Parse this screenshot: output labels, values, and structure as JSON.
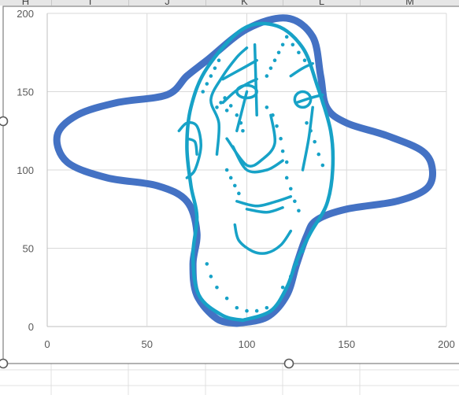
{
  "spreadsheet": {
    "column_headers": [
      "H",
      "I",
      "J",
      "K",
      "L",
      "M"
    ]
  },
  "chart_data": {
    "type": "scatter",
    "title": "",
    "xlabel": "",
    "ylabel": "",
    "xlim": [
      0,
      200
    ],
    "ylim": [
      0,
      200
    ],
    "x_ticks": [
      0,
      50,
      100,
      150,
      200
    ],
    "y_ticks": [
      0,
      50,
      100,
      150,
      200
    ],
    "grid": true,
    "legend": "none",
    "colors": {
      "outline": "#4472c4",
      "face": "#17a2c7",
      "grid": "#d9d9d9",
      "axis": "#bfbfbf"
    },
    "series": [
      {
        "style": "smooth-line",
        "points": [
          [
            95,
            2
          ],
          [
            110,
            6
          ],
          [
            120,
            20
          ],
          [
            125,
            40
          ],
          [
            130,
            58
          ],
          [
            135,
            68
          ],
          [
            150,
            75
          ],
          [
            175,
            80
          ],
          [
            190,
            88
          ],
          [
            193,
            100
          ],
          [
            188,
            112
          ],
          [
            170,
            122
          ],
          [
            150,
            130
          ],
          [
            140,
            140
          ],
          [
            137,
            160
          ],
          [
            133,
            185
          ],
          [
            120,
            197
          ],
          [
            100,
            190
          ],
          [
            80,
            170
          ],
          [
            70,
            160
          ],
          [
            60,
            148
          ],
          [
            35,
            143
          ],
          [
            15,
            135
          ],
          [
            5,
            122
          ],
          [
            10,
            105
          ],
          [
            30,
            95
          ],
          [
            55,
            90
          ],
          [
            70,
            80
          ],
          [
            75,
            60
          ],
          [
            73,
            40
          ],
          [
            75,
            20
          ],
          [
            85,
            5
          ],
          [
            95,
            2
          ]
        ]
      },
      {
        "style": "smooth-line",
        "points": [
          [
            98,
            4
          ],
          [
            112,
            10
          ],
          [
            120,
            25
          ],
          [
            125,
            42
          ],
          [
            132,
            60
          ],
          [
            140,
            78
          ],
          [
            143,
            100
          ],
          [
            142,
            125
          ],
          [
            135,
            155
          ],
          [
            128,
            178
          ],
          [
            115,
            192
          ],
          [
            98,
            190
          ],
          [
            80,
            165
          ],
          [
            72,
            140
          ],
          [
            70,
            115
          ],
          [
            72,
            90
          ],
          [
            75,
            70
          ],
          [
            73,
            45
          ],
          [
            76,
            20
          ],
          [
            88,
            7
          ],
          [
            98,
            4
          ]
        ]
      },
      {
        "style": "line",
        "points": [
          [
            90,
            120
          ],
          [
            100,
            103
          ],
          [
            108,
            107
          ],
          [
            114,
            117
          ],
          [
            112,
            135
          ]
        ]
      },
      {
        "style": "line",
        "points": [
          [
            93,
            115
          ],
          [
            100,
            100
          ],
          [
            110,
            100
          ],
          [
            118,
            106
          ]
        ]
      },
      {
        "style": "line",
        "points": [
          [
            95,
            125
          ],
          [
            100,
            150
          ]
        ]
      },
      {
        "style": "line",
        "points": [
          [
            105,
            135
          ],
          [
            104,
            180
          ]
        ]
      },
      {
        "style": "line",
        "points": [
          [
            88,
            143
          ],
          [
            94,
            150
          ],
          [
            100,
            155
          ],
          [
            105,
            158
          ]
        ]
      },
      {
        "style": "line",
        "points": [
          [
            125,
            143
          ],
          [
            132,
            146
          ],
          [
            138,
            148
          ]
        ]
      },
      {
        "style": "line",
        "points": [
          [
            88,
            158
          ],
          [
            98,
            165
          ],
          [
            105,
            170
          ]
        ]
      },
      {
        "style": "line",
        "points": [
          [
            122,
            160
          ],
          [
            128,
            165
          ],
          [
            133,
            168
          ]
        ]
      },
      {
        "style": "line",
        "points": [
          [
            95,
            80
          ],
          [
            105,
            77
          ],
          [
            115,
            80
          ],
          [
            122,
            83
          ]
        ]
      },
      {
        "style": "line",
        "points": [
          [
            100,
            75
          ],
          [
            110,
            73
          ],
          [
            118,
            76
          ]
        ]
      },
      {
        "style": "line",
        "points": [
          [
            94,
            65
          ],
          [
            96,
            55
          ],
          [
            103,
            48
          ],
          [
            110,
            47
          ],
          [
            117,
            52
          ],
          [
            122,
            61
          ]
        ]
      },
      {
        "style": "line",
        "points": [
          [
            85,
            110
          ],
          [
            86,
            130
          ],
          [
            82,
            145
          ],
          [
            88,
            160
          ],
          [
            95,
            172
          ],
          [
            100,
            178
          ]
        ]
      },
      {
        "style": "line",
        "points": [
          [
            128,
            100
          ],
          [
            131,
            120
          ],
          [
            133,
            140
          ]
        ]
      },
      {
        "style": "line",
        "points": [
          [
            66,
            125
          ],
          [
            70,
            130
          ],
          [
            75,
            128
          ],
          [
            77,
            115
          ],
          [
            74,
            100
          ],
          [
            70,
            95
          ]
        ]
      },
      {
        "style": "line",
        "points": [
          [
            70,
            120
          ],
          [
            74,
            118
          ],
          [
            75,
            110
          ]
        ]
      },
      {
        "style": "ellipse",
        "center": [
          100,
          150
        ],
        "radius": [
          5,
          4
        ]
      },
      {
        "style": "ellipse",
        "center": [
          128,
          145
        ],
        "radius": [
          4,
          5
        ]
      },
      {
        "style": "dots",
        "points": [
          [
            85,
            140
          ],
          [
            87,
            143
          ],
          [
            89,
            146
          ],
          [
            90,
            138
          ],
          [
            92,
            141
          ],
          [
            95,
            135
          ],
          [
            97,
            130
          ],
          [
            98,
            125
          ],
          [
            110,
            140
          ],
          [
            113,
            135
          ],
          [
            115,
            128
          ],
          [
            117,
            120
          ],
          [
            118,
            112
          ],
          [
            120,
            105
          ],
          [
            110,
            160
          ],
          [
            112,
            165
          ],
          [
            114,
            170
          ],
          [
            116,
            175
          ],
          [
            118,
            180
          ],
          [
            130,
            130
          ],
          [
            132,
            125
          ],
          [
            134,
            118
          ],
          [
            136,
            110
          ],
          [
            138,
            103
          ],
          [
            90,
            100
          ],
          [
            92,
            95
          ],
          [
            94,
            90
          ],
          [
            96,
            85
          ],
          [
            120,
            95
          ],
          [
            122,
            88
          ],
          [
            124,
            80
          ],
          [
            126,
            74
          ],
          [
            130,
            55
          ],
          [
            128,
            48
          ],
          [
            125,
            40
          ],
          [
            122,
            32
          ],
          [
            118,
            25
          ],
          [
            80,
            40
          ],
          [
            82,
            32
          ],
          [
            85,
            25
          ],
          [
            90,
            18
          ],
          [
            95,
            12
          ],
          [
            100,
            10
          ],
          [
            105,
            10
          ],
          [
            110,
            12
          ],
          [
            78,
            150
          ],
          [
            80,
            155
          ],
          [
            82,
            160
          ],
          [
            84,
            165
          ],
          [
            86,
            170
          ],
          [
            120,
            185
          ],
          [
            123,
            180
          ],
          [
            126,
            175
          ],
          [
            129,
            170
          ]
        ]
      }
    ]
  }
}
